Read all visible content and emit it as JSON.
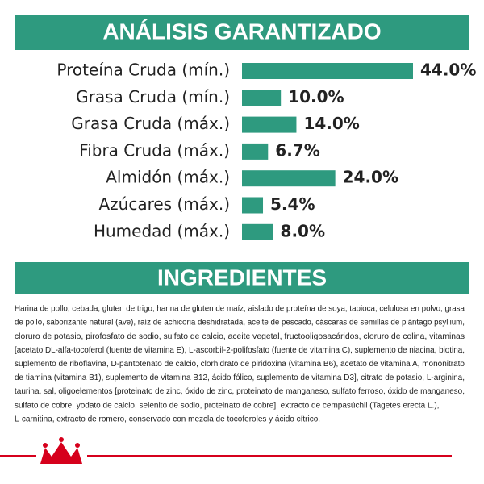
{
  "chart_data": {
    "type": "bar",
    "orientation": "horizontal",
    "title": "ANÁLISIS GARANTIZADO",
    "categories": [
      "Proteína Cruda (mín.)",
      "Grasa Cruda (mín.)",
      "Grasa Cruda (máx.)",
      "Fibra Cruda (máx.)",
      "Almidón (máx.)",
      "Azúcares (máx.)",
      "Humedad (máx.)"
    ],
    "values": [
      44,
      10,
      14,
      6.7,
      24,
      5.4,
      8
    ],
    "value_labels": [
      "44.0%",
      "10.0%",
      "14.0%",
      "6.7%",
      "24.0%",
      "5.4%",
      "8.0%"
    ],
    "color": "#2e9a7f"
  },
  "ingredients": {
    "title": "INGREDIENTES",
    "lines": [
      "Harina de pollo, cebada, gluten de trigo, harina de gluten de maíz, aislado de proteína de soya, tapioca, celulosa en polvo, grasa",
      "de pollo, saborizante natural (ave), raíz de achicoria deshidratada, aceite de pescado, cáscaras de semillas de plántago psyllium,",
      "cloruro de potasio, pirofosfato de sodio, sulfato de calcio, aceite vegetal, fructooligosacáridos, cloruro de colina, vitaminas",
      "[acetato DL-alfa-tocoferol (fuente de vitamina E), L-ascorbil-2-polifosfato (fuente de vitamina C), suplemento de niacina, biotina,",
      "suplemento de riboflavina, D-pantotenato de calcio, clorhidrato de piridoxina (vitamina B6), acetato de vitamina A, mononitrato",
      "de tiamina (vitamina B1), suplemento de vitamina B12, ácido fólico, suplemento de vitamina D3], citrato de potasio, L-arginina,",
      "taurina, sal, oligoelementos [proteinato de zinc, óxido de zinc, proteinato de manganeso, sulfato ferroso, óxido de manganeso,",
      "sulfato de cobre, yodato de calcio, selenito de sodio, proteinato de cobre], extracto de cempasúchil (Tagetes erecta L.),",
      "L-carnitina, extracto de romero, conservado con mezcla de tocoferoles y ácido cítrico."
    ]
  }
}
